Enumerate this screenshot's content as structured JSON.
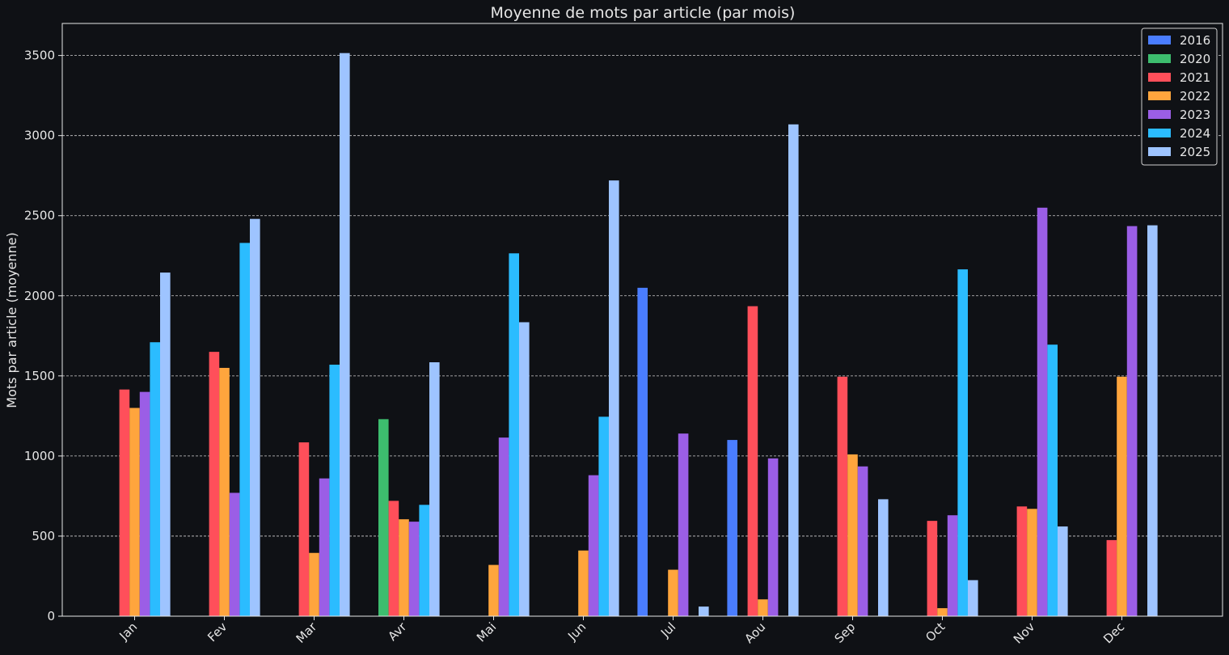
{
  "chart_data": {
    "type": "bar",
    "title": "Moyenne de mots par article (par mois)",
    "xlabel": "",
    "ylabel": "Mots par article (moyenne)",
    "ylim": [
      0,
      3700
    ],
    "yticks": [
      0,
      500,
      1000,
      1500,
      2000,
      2500,
      3000,
      3500
    ],
    "grid": "y-dashed",
    "legend_position": "top-right",
    "categories": [
      "Jan",
      "Fev",
      "Mar",
      "Avr",
      "Mai",
      "Jun",
      "Jul",
      "Aou",
      "Sep",
      "Oct",
      "Nov",
      "Dec"
    ],
    "series": [
      {
        "name": "2016",
        "color": "#4a7dff",
        "values": [
          null,
          null,
          null,
          null,
          null,
          null,
          2050,
          1100,
          null,
          null,
          null,
          null
        ]
      },
      {
        "name": "2020",
        "color": "#3dbd6e",
        "values": [
          null,
          null,
          null,
          1230,
          null,
          null,
          null,
          null,
          null,
          null,
          null,
          null
        ]
      },
      {
        "name": "2021",
        "color": "#ff4f5a",
        "values": [
          1415,
          1650,
          1085,
          720,
          null,
          null,
          null,
          1935,
          1495,
          595,
          685,
          475
        ]
      },
      {
        "name": "2022",
        "color": "#ffa53d",
        "values": [
          1300,
          1550,
          395,
          605,
          320,
          410,
          290,
          105,
          1010,
          50,
          670,
          1495
        ]
      },
      {
        "name": "2023",
        "color": "#9b5ee6",
        "values": [
          1400,
          770,
          860,
          590,
          1115,
          880,
          1140,
          985,
          935,
          630,
          2550,
          2435
        ]
      },
      {
        "name": "2024",
        "color": "#2bbcff",
        "values": [
          1710,
          2330,
          1570,
          695,
          2265,
          1245,
          null,
          null,
          null,
          2165,
          1695,
          null
        ]
      },
      {
        "name": "2025",
        "color": "#9ec4ff",
        "values": [
          2145,
          2480,
          3515,
          1585,
          1835,
          2720,
          60,
          3070,
          730,
          225,
          560,
          2440
        ]
      }
    ]
  }
}
